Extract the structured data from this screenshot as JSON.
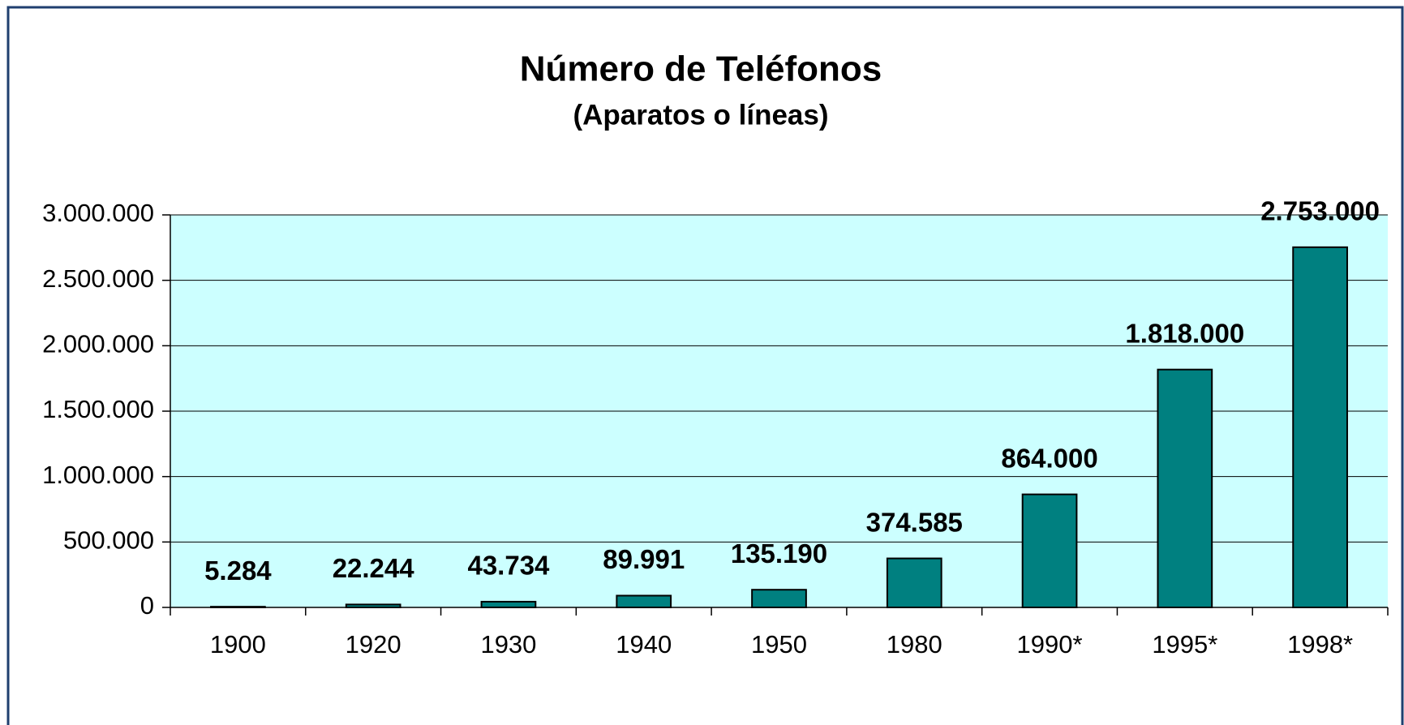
{
  "chart_data": {
    "type": "bar",
    "title": "Número de Teléfonos",
    "subtitle": "(Aparatos o líneas)",
    "categories": [
      "1900",
      "1920",
      "1930",
      "1940",
      "1950",
      "1980",
      "1990*",
      "1995*",
      "1998*"
    ],
    "values": [
      5284,
      22244,
      43734,
      89991,
      135190,
      374585,
      864000,
      1818000,
      2753000
    ],
    "value_labels": [
      "5.284",
      "22.244",
      "43.734",
      "89.991",
      "135.190",
      "374.585",
      "864.000",
      "1.818.000",
      "2.753.000"
    ],
    "color": "#008080",
    "plot_background": "#ccffff",
    "ylim": [
      0,
      3000000
    ],
    "yticks": [
      0,
      {
        "value": 500000,
        "label": "500.000"
      },
      {
        "value": 1000000,
        "label": "1.000.000"
      },
      {
        "value": 1500000,
        "label": "1.500.000"
      },
      {
        "value": 2000000,
        "label": "2.000.000"
      },
      {
        "value": 2500000,
        "label": "2.500.000"
      },
      {
        "value": 3000000,
        "label": "3.000.000"
      }
    ],
    "grid": true
  }
}
